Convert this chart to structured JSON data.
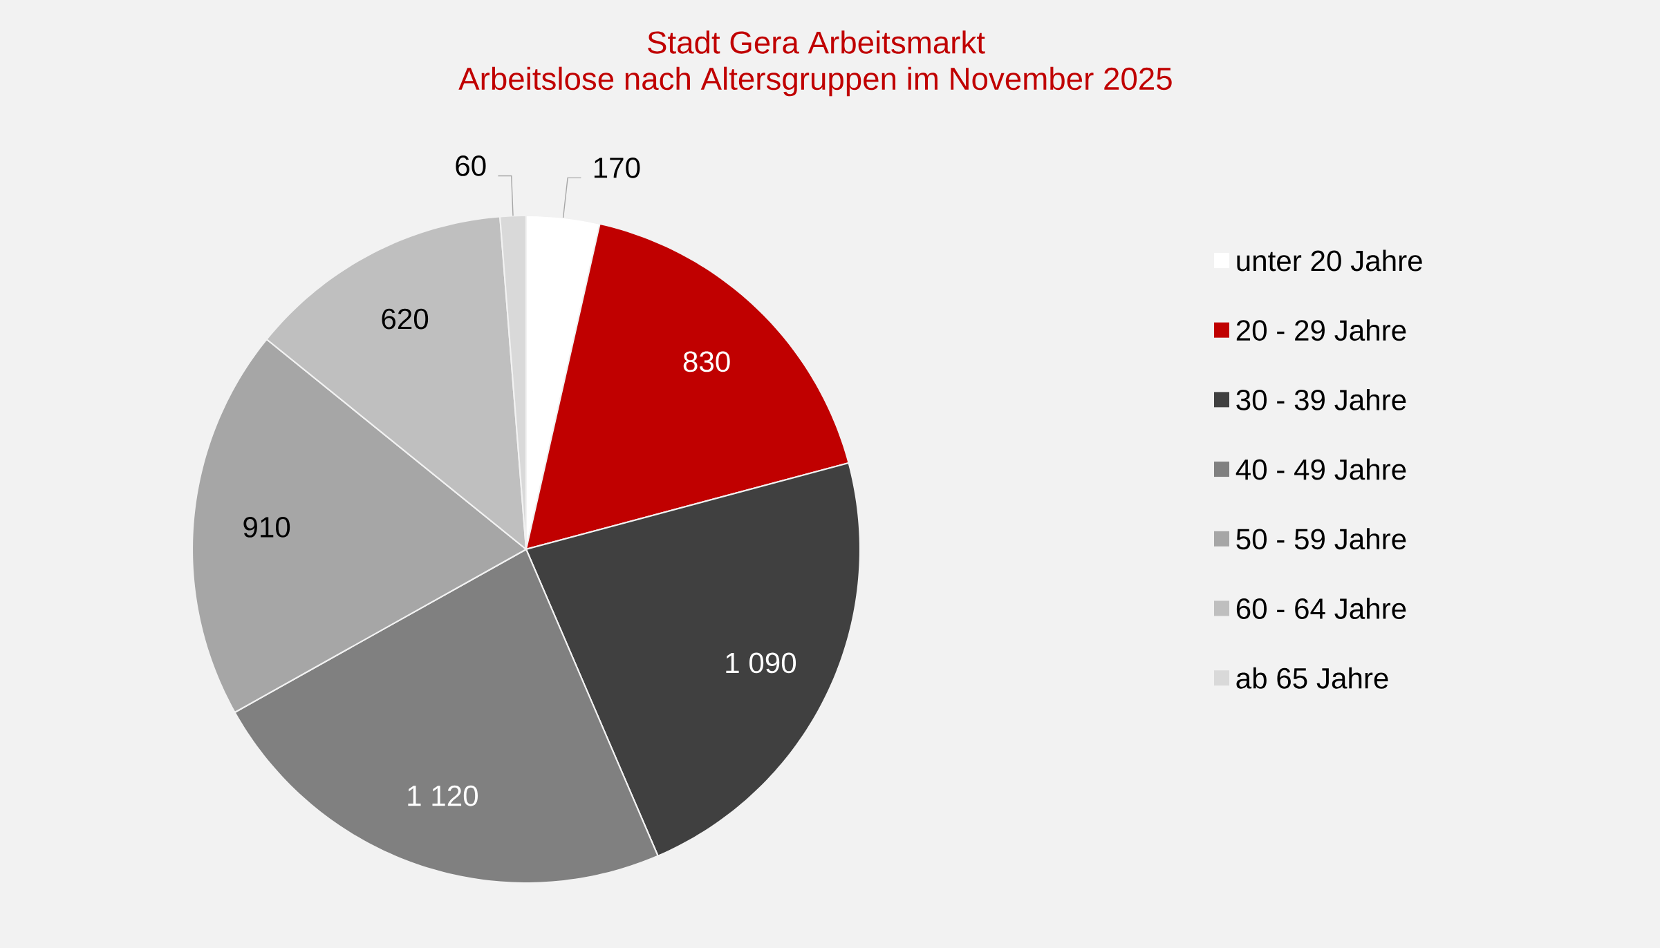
{
  "chart_data": {
    "type": "pie",
    "title": "Stadt Gera Arbeitsmarkt",
    "subtitle": "Arbeitslose nach Altersgruppen im November 2025",
    "categories": [
      "unter 20 Jahre",
      "20 - 29 Jahre",
      "30 - 39 Jahre",
      "40 - 49 Jahre",
      "50 - 59 Jahre",
      "60 - 64 Jahre",
      "ab 65 Jahre"
    ],
    "values": [
      170,
      830,
      1090,
      1120,
      910,
      620,
      60
    ],
    "colors": [
      "#ffffff",
      "#c00000",
      "#404040",
      "#808080",
      "#a6a6a6",
      "#bfbfbf",
      "#d9d9d9"
    ],
    "value_labels": [
      "170",
      "830",
      "1 090",
      "1 120",
      "910",
      "620",
      "60"
    ],
    "legend": "right"
  }
}
